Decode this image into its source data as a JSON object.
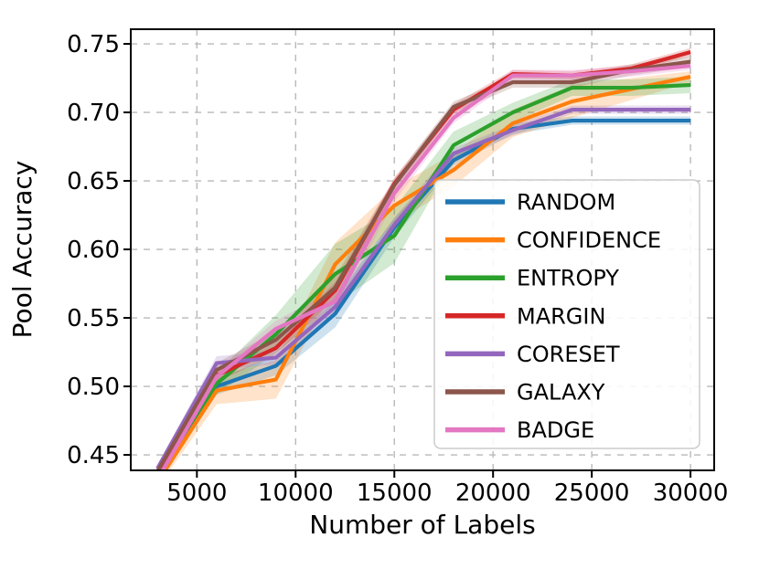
{
  "figure": {
    "background": "#ffffff"
  },
  "chart_data": {
    "type": "line",
    "title": "",
    "xlabel": "Number of Labels",
    "ylabel": "Pool Accuracy",
    "x": [
      3000,
      6000,
      9000,
      12000,
      15000,
      18000,
      21000,
      24000,
      27000,
      30000
    ],
    "series": [
      {
        "name": "RANDOM",
        "color": "#1f77b4",
        "values": [
          0.434,
          0.5,
          0.515,
          0.553,
          0.616,
          0.665,
          0.688,
          0.694,
          0.694,
          0.694
        ],
        "band": [
          0.004,
          0.006,
          0.007,
          0.01,
          0.007,
          0.004,
          0.004,
          0.003,
          0.003,
          0.003
        ]
      },
      {
        "name": "CONFIDENCE",
        "color": "#ff7f0e",
        "values": [
          0.43,
          0.497,
          0.505,
          0.589,
          0.632,
          0.658,
          0.692,
          0.708,
          0.717,
          0.726
        ],
        "band": [
          0.004,
          0.01,
          0.014,
          0.016,
          0.013,
          0.012,
          0.01,
          0.012,
          0.008,
          0.004
        ]
      },
      {
        "name": "ENTROPY",
        "color": "#2ca02c",
        "values": [
          0.436,
          0.502,
          0.538,
          0.582,
          0.61,
          0.676,
          0.7,
          0.718,
          0.718,
          0.72
        ],
        "band": [
          0.004,
          0.008,
          0.014,
          0.022,
          0.02,
          0.01,
          0.007,
          0.006,
          0.006,
          0.006
        ]
      },
      {
        "name": "MARGIN",
        "color": "#d62728",
        "values": [
          0.434,
          0.508,
          0.528,
          0.57,
          0.648,
          0.702,
          0.728,
          0.727,
          0.732,
          0.744
        ],
        "band": [
          0.003,
          0.005,
          0.005,
          0.006,
          0.004,
          0.004,
          0.003,
          0.003,
          0.003,
          0.003
        ]
      },
      {
        "name": "CORESET",
        "color": "#9467bd",
        "values": [
          0.44,
          0.517,
          0.521,
          0.558,
          0.618,
          0.67,
          0.687,
          0.702,
          0.702,
          0.702
        ],
        "band": [
          0.003,
          0.005,
          0.005,
          0.007,
          0.005,
          0.004,
          0.004,
          0.003,
          0.003,
          0.003
        ]
      },
      {
        "name": "GALAXY",
        "color": "#8c564b",
        "values": [
          0.438,
          0.512,
          0.534,
          0.572,
          0.647,
          0.704,
          0.722,
          0.722,
          0.731,
          0.737
        ],
        "band": [
          0.003,
          0.005,
          0.006,
          0.008,
          0.005,
          0.004,
          0.004,
          0.004,
          0.004,
          0.004
        ]
      },
      {
        "name": "BADGE",
        "color": "#e377c2",
        "values": [
          0.432,
          0.507,
          0.542,
          0.562,
          0.641,
          0.696,
          0.727,
          0.727,
          0.73,
          0.734
        ],
        "band": [
          0.003,
          0.005,
          0.006,
          0.009,
          0.006,
          0.004,
          0.004,
          0.004,
          0.004,
          0.003
        ]
      }
    ],
    "xlim": [
      1650,
      31200
    ],
    "ylim": [
      0.4387,
      0.7607
    ],
    "xticks": [
      5000,
      10000,
      15000,
      20000,
      25000,
      30000
    ],
    "yticks": [
      0.45,
      0.5,
      0.55,
      0.6,
      0.65,
      0.7,
      0.75
    ],
    "grid": {
      "show": true,
      "style": "dashed",
      "color": "#b9b9b9"
    },
    "legend": {
      "position": "center-right",
      "labels": [
        "RANDOM",
        "CONFIDENCE",
        "ENTROPY",
        "MARGIN",
        "CORESET",
        "GALAXY",
        "BADGE"
      ]
    },
    "axis_color": "#000000",
    "band_opacity": 0.22,
    "line_width": 4.2
  }
}
